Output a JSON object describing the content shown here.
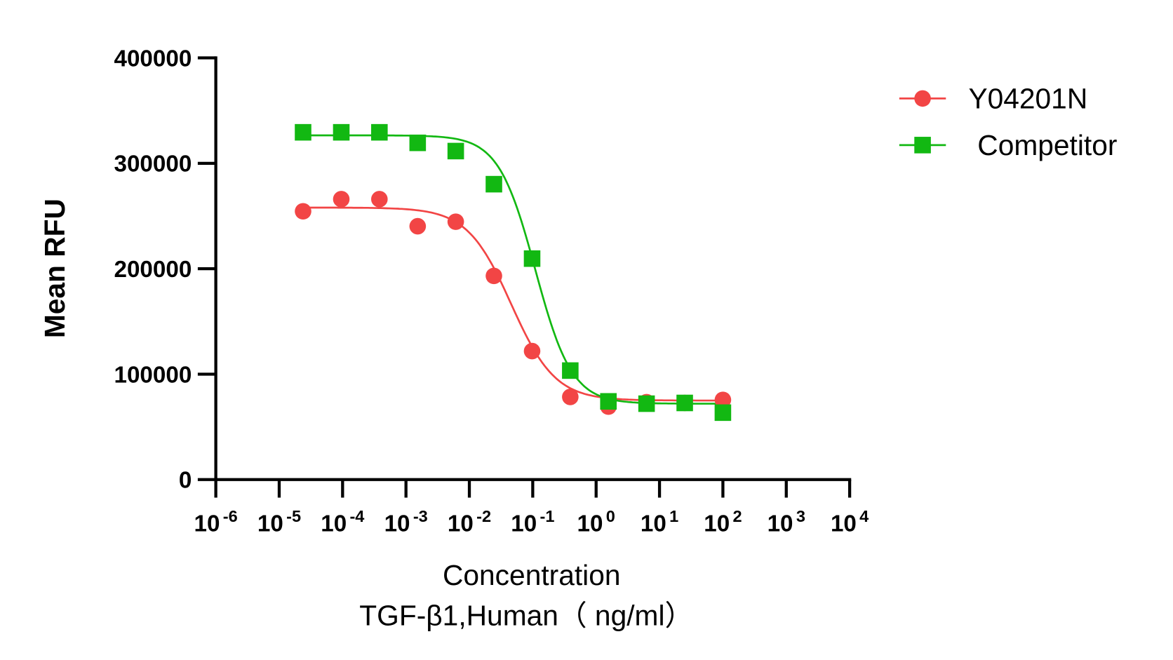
{
  "chart_data": {
    "type": "scatter",
    "title": "",
    "xlabel": "Concentration",
    "xlabel2": "TGF-β1,Human（ ng/ml）",
    "ylabel": "Mean RFU",
    "xscale": "log",
    "xlim": [
      1e-06,
      10000
    ],
    "ylim": [
      0,
      400000
    ],
    "xticks": [
      {
        "base": "10",
        "exp": "-6"
      },
      {
        "base": "10",
        "exp": "-5"
      },
      {
        "base": "10",
        "exp": "-4"
      },
      {
        "base": "10",
        "exp": "-3"
      },
      {
        "base": "10",
        "exp": "-2"
      },
      {
        "base": "10",
        "exp": "-1"
      },
      {
        "base": "10",
        "exp": "0"
      },
      {
        "base": "10",
        "exp": "1"
      },
      {
        "base": "10",
        "exp": "2"
      },
      {
        "base": "10",
        "exp": "3"
      },
      {
        "base": "10",
        "exp": "4"
      }
    ],
    "yticks": [
      "0",
      "100000",
      "200000",
      "300000",
      "400000"
    ],
    "grid": false,
    "legend_position": "top-right",
    "x": [
      2.38e-05,
      9.54e-05,
      0.000381,
      0.00153,
      0.0061,
      0.0244,
      0.0977,
      0.391,
      1.5625,
      6.25,
      25,
      100
    ],
    "series": [
      {
        "name": "Y04201N",
        "color": "#f24545",
        "marker": "circle",
        "values": [
          254500,
          266000,
          266000,
          240300,
          244600,
          193200,
          121900,
          78400,
          69200,
          73400,
          72700,
          75600
        ]
      },
      {
        "name": "Competitor",
        "color": "#12b812",
        "marker": "square",
        "values": [
          329400,
          329400,
          329400,
          319400,
          311600,
          280200,
          209600,
          103400,
          74200,
          72000,
          72700,
          63500
        ]
      }
    ]
  }
}
